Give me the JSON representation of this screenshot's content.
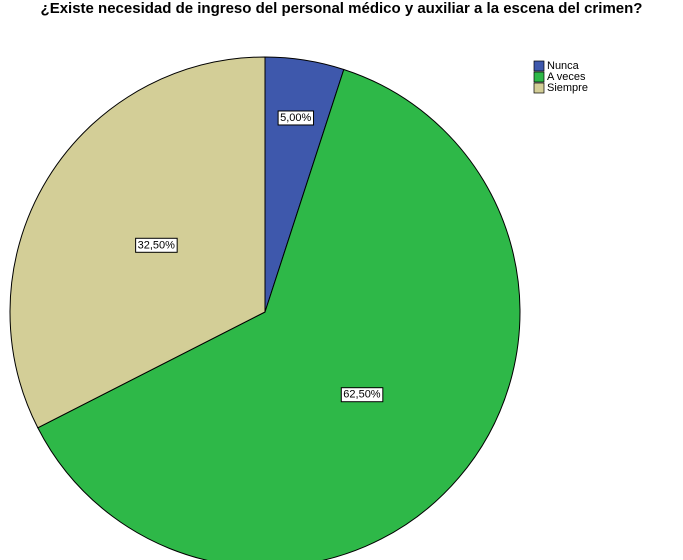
{
  "chart_data": {
    "type": "pie",
    "title": "¿Existe necesidad de ingreso del personal médico y auxiliar a la escena del crimen?",
    "categories": [
      "Nunca",
      "A veces",
      "Siempre"
    ],
    "values": [
      5,
      62.5,
      32.5
    ],
    "value_labels": [
      "5,00%",
      "62,50%",
      "32,50%"
    ],
    "colors": [
      "#3e58ac",
      "#2eb848",
      "#d3ce97"
    ],
    "legend": "top-right"
  }
}
